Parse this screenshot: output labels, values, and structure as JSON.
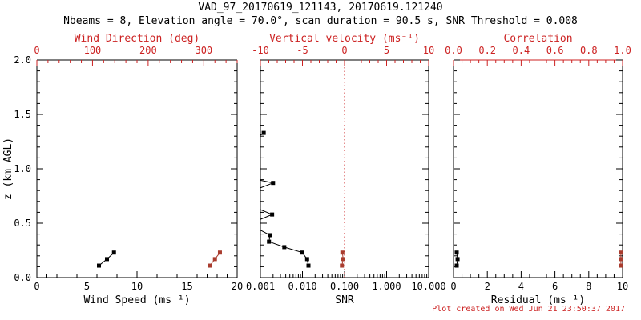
{
  "title": "VAD_97_20170619_121143, 20170619.121240",
  "subtitle": "Nbeams = 8, Elevation angle = 70.0°, scan duration = 90.5 s, SNR Threshold = 0.008",
  "footer": "Plot created on Wed Jun 21 23:50:37 2017",
  "colors": {
    "foreground": "#000000",
    "red_axis": "#cc2222",
    "red_data": "#a93c2e",
    "background": "#ffffff"
  },
  "y_axis": {
    "label": "z (km AGL)",
    "lim": [
      0,
      2.0
    ],
    "major_ticks": [
      0.0,
      0.5,
      1.0,
      1.5,
      2.0
    ],
    "tick_labels": [
      "0.0",
      "0.5",
      "1.0",
      "1.5",
      "2.0"
    ],
    "minor_step": 0.1
  },
  "chart_data": [
    {
      "type": "scatter",
      "panel": "wind-speed-direction",
      "bottom_axis": {
        "label": "Wind Speed (ms⁻¹)",
        "scale": "linear",
        "lim": [
          0,
          20
        ],
        "major_ticks": [
          0,
          5,
          10,
          15,
          20
        ],
        "tick_labels": [
          "0",
          "5",
          "10",
          "15",
          "20"
        ],
        "minor_step": 1
      },
      "top_axis": {
        "label": "Wind Direction (deg)",
        "scale": "linear",
        "lim": [
          0,
          360
        ],
        "major_ticks": [
          0,
          100,
          200,
          300
        ],
        "tick_labels": [
          "0",
          "100",
          "200",
          "300"
        ],
        "minor_step": 20,
        "red_line": false
      },
      "series": [
        {
          "name": "wind-speed",
          "axis": "bottom",
          "color_key": "foreground",
          "points": [
            {
              "x": 6.2,
              "z": 0.11
            },
            {
              "x": 7.0,
              "z": 0.17
            },
            {
              "x": 7.7,
              "z": 0.23
            }
          ]
        },
        {
          "name": "wind-direction",
          "axis": "top",
          "color_key": "red_data",
          "points": [
            {
              "x": 311,
              "z": 0.11
            },
            {
              "x": 320,
              "z": 0.17
            },
            {
              "x": 329,
              "z": 0.23
            }
          ]
        }
      ]
    },
    {
      "type": "scatter",
      "panel": "snr-vertical-velocity",
      "bottom_axis": {
        "label": "SNR",
        "scale": "log",
        "lim": [
          0.001,
          10
        ],
        "major_ticks": [
          0.001,
          0.01,
          0.1,
          1,
          10
        ],
        "tick_labels": [
          "0.001",
          "0.010",
          "0.100",
          "1.000",
          "10.000"
        ]
      },
      "top_axis": {
        "label": "Vertical velocity (ms⁻¹)",
        "scale": "linear",
        "lim": [
          -10,
          10
        ],
        "major_ticks": [
          -10,
          -5,
          0,
          5,
          10
        ],
        "tick_labels": [
          "-10",
          "-5",
          "0",
          "5",
          "10"
        ],
        "minor_step": 1,
        "red_line": false,
        "reference_line_x": 0
      },
      "series": [
        {
          "name": "snr",
          "axis": "bottom",
          "color_key": "foreground",
          "points": [
            {
              "x": 0.0012,
              "z": 1.33
            },
            {
              "x": 0.0008,
              "z": 1.28,
              "below_scale": true
            },
            {
              "x": 0.0002,
              "z": 1.05,
              "below_scale": true
            },
            {
              "x": 0.0002,
              "z": 0.95,
              "below_scale": true
            },
            {
              "x": 0.002,
              "z": 0.87
            },
            {
              "x": 0.0008,
              "z": 0.81,
              "below_scale": true
            },
            {
              "x": 0.0008,
              "z": 0.64,
              "below_scale": true
            },
            {
              "x": 0.0019,
              "z": 0.58
            },
            {
              "x": 0.0008,
              "z": 0.52,
              "below_scale": true
            },
            {
              "x": 0.0008,
              "z": 0.455,
              "below_scale": true
            },
            {
              "x": 0.0017,
              "z": 0.39
            },
            {
              "x": 0.0016,
              "z": 0.33
            },
            {
              "x": 0.0037,
              "z": 0.28
            },
            {
              "x": 0.0099,
              "z": 0.23
            },
            {
              "x": 0.0129,
              "z": 0.17
            },
            {
              "x": 0.0139,
              "z": 0.11
            }
          ]
        },
        {
          "name": "vertical-velocity",
          "axis": "top",
          "color_key": "red_data",
          "points": [
            {
              "x": -0.26,
              "z": 0.23
            },
            {
              "x": -0.16,
              "z": 0.17
            },
            {
              "x": -0.31,
              "z": 0.11
            }
          ]
        }
      ]
    },
    {
      "type": "scatter",
      "panel": "residual-correlation",
      "bottom_axis": {
        "label": "Residual (ms⁻¹)",
        "scale": "linear",
        "lim": [
          0,
          10
        ],
        "major_ticks": [
          0,
          2,
          4,
          6,
          8,
          10
        ],
        "tick_labels": [
          "0",
          "2",
          "4",
          "6",
          "8",
          "10"
        ],
        "minor_step": 0.5
      },
      "top_axis": {
        "label": "Correlation",
        "scale": "linear",
        "lim": [
          0,
          1
        ],
        "major_ticks": [
          0,
          0.2,
          0.4,
          0.6,
          0.8,
          1.0
        ],
        "tick_labels": [
          "0.0",
          "0.2",
          "0.4",
          "0.6",
          "0.8",
          "1.0"
        ],
        "minor_step": 0.05,
        "red_line": true
      },
      "series": [
        {
          "name": "residual",
          "axis": "bottom",
          "color_key": "foreground",
          "points": [
            {
              "x": 0.19,
              "z": 0.23
            },
            {
              "x": 0.24,
              "z": 0.17
            },
            {
              "x": 0.19,
              "z": 0.11
            }
          ]
        },
        {
          "name": "correlation",
          "axis": "top",
          "color_key": "red_data",
          "points": [
            {
              "x": 0.99,
              "z": 0.23
            },
            {
              "x": 0.99,
              "z": 0.17
            },
            {
              "x": 0.99,
              "z": 0.11
            }
          ]
        }
      ]
    }
  ]
}
